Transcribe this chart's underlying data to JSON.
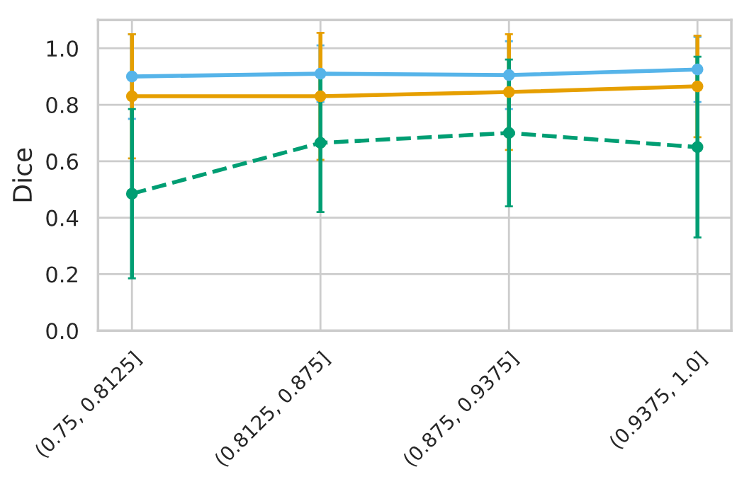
{
  "chart_data": {
    "type": "line",
    "ylabel": "Dice",
    "categories": [
      "(0.75, 0.8125]",
      "(0.8125, 0.875]",
      "(0.875, 0.9375]",
      "(0.9375, 1.0]"
    ],
    "series": [
      {
        "color": "#56b4e9",
        "values": [
          0.9,
          0.91,
          0.905,
          0.925
        ],
        "errors": [
          0.15,
          0.1,
          0.12,
          0.115
        ],
        "line_style": "solid"
      },
      {
        "color": "#e69f00",
        "values": [
          0.83,
          0.83,
          0.845,
          0.865
        ],
        "errors": [
          0.22,
          0.225,
          0.205,
          0.18
        ],
        "line_style": "solid"
      },
      {
        "color": "#009e73",
        "values": [
          0.485,
          0.665,
          0.7,
          0.65
        ],
        "errors": [
          0.3,
          0.245,
          0.26,
          0.32
        ],
        "line_style": "dashed"
      }
    ],
    "ylim": [
      0,
      1.1
    ],
    "yticks": [
      {
        "value": 0,
        "label": "0.0"
      },
      {
        "value": 0.2,
        "label": "0.2"
      },
      {
        "value": 0.4,
        "label": "0.4"
      },
      {
        "value": 0.6,
        "label": "0.6"
      },
      {
        "value": 0.8,
        "label": "0.8"
      },
      {
        "value": 1.0,
        "label": "1.0"
      }
    ],
    "grid": true,
    "marker": "circle"
  }
}
